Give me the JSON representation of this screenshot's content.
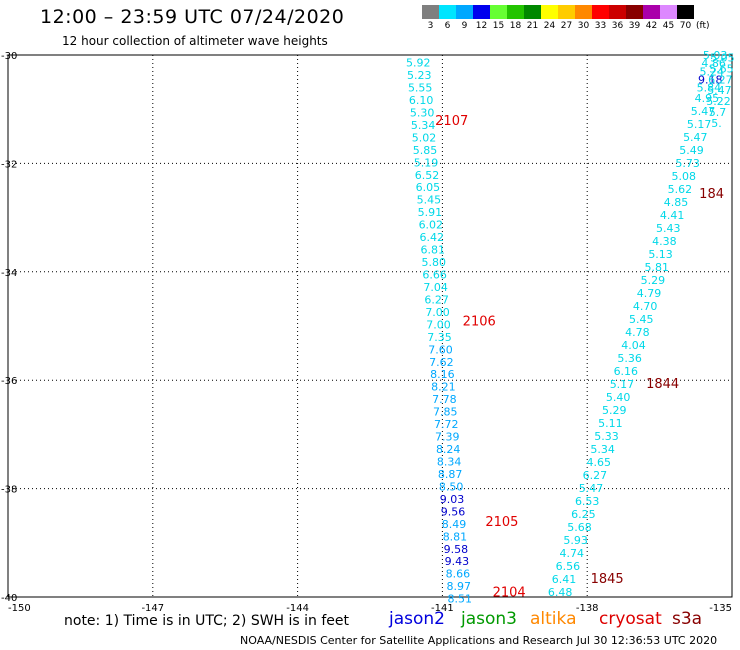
{
  "header": {
    "title": "12:00 – 23:59 UTC 07/24/2020",
    "subtitle": "12 hour collection of altimeter wave heights"
  },
  "legend": {
    "unit": "(ft)",
    "items": [
      {
        "label": "3",
        "color": "#7f7f7f"
      },
      {
        "label": "6",
        "color": "#00e5ff"
      },
      {
        "label": "9",
        "color": "#00a8ff"
      },
      {
        "label": "12",
        "color": "#0000ee"
      },
      {
        "label": "15",
        "color": "#66ff33"
      },
      {
        "label": "18",
        "color": "#22c400"
      },
      {
        "label": "21",
        "color": "#008800"
      },
      {
        "label": "24",
        "color": "#ffff00"
      },
      {
        "label": "27",
        "color": "#ffcc00"
      },
      {
        "label": "30",
        "color": "#ff8800"
      },
      {
        "label": "33",
        "color": "#ff0000"
      },
      {
        "label": "36",
        "color": "#cc0000"
      },
      {
        "label": "39",
        "color": "#880000"
      },
      {
        "label": "42",
        "color": "#aa00aa"
      },
      {
        "label": "45",
        "color": "#dd88ff"
      },
      {
        "label": "70",
        "color": "#000000"
      }
    ]
  },
  "map": {
    "lon_range": [
      -150,
      -135
    ],
    "lat_range": [
      -40,
      -30
    ],
    "x_ticks": [
      "-150",
      "-147",
      "-144",
      "-141",
      "-138",
      "-135"
    ],
    "y_ticks": [
      "-30",
      "-32",
      "-34",
      "-36",
      "-38",
      "-40"
    ],
    "tracks": [
      {
        "pass_labels": [
          {
            "text": "2107",
            "lat": -31.2,
            "lon_off": 0.25,
            "color": "#e00000"
          },
          {
            "text": "2106",
            "lat": -34.9,
            "lon_off": 0.5,
            "color": "#e00000"
          },
          {
            "text": "2105",
            "lat": -38.6,
            "lon_off": 0.65,
            "color": "#e00000"
          },
          {
            "text": "2104",
            "lat": -39.9,
            "lon_off": 0.7,
            "color": "#e00000"
          }
        ],
        "points": [
          {
            "lon": -141.5,
            "lat": -30.14,
            "v": "5.92",
            "c": "#00d8e8"
          },
          {
            "lon": -141.48,
            "lat": -30.37,
            "v": "5.23",
            "c": "#00d8e8"
          },
          {
            "lon": -141.46,
            "lat": -30.6,
            "v": "5.55",
            "c": "#00d8e8"
          },
          {
            "lon": -141.44,
            "lat": -30.83,
            "v": "6.10",
            "c": "#00d8e8"
          },
          {
            "lon": -141.42,
            "lat": -31.06,
            "v": "5.30",
            "c": "#00d8e8"
          },
          {
            "lon": -141.4,
            "lat": -31.29,
            "v": "5.34",
            "c": "#00d8e8"
          },
          {
            "lon": -141.38,
            "lat": -31.52,
            "v": "5.02",
            "c": "#00d8e8"
          },
          {
            "lon": -141.36,
            "lat": -31.75,
            "v": "5.85",
            "c": "#00d8e8"
          },
          {
            "lon": -141.34,
            "lat": -31.98,
            "v": "5.19",
            "c": "#00d8e8"
          },
          {
            "lon": -141.32,
            "lat": -32.21,
            "v": "6.52",
            "c": "#00d8e8"
          },
          {
            "lon": -141.3,
            "lat": -32.44,
            "v": "6.05",
            "c": "#00d8e8"
          },
          {
            "lon": -141.28,
            "lat": -32.67,
            "v": "5.45",
            "c": "#00d8e8"
          },
          {
            "lon": -141.26,
            "lat": -32.9,
            "v": "5.91",
            "c": "#00d8e8"
          },
          {
            "lon": -141.24,
            "lat": -33.13,
            "v": "6.02",
            "c": "#00d8e8"
          },
          {
            "lon": -141.22,
            "lat": -33.36,
            "v": "6.42",
            "c": "#00d8e8"
          },
          {
            "lon": -141.2,
            "lat": -33.59,
            "v": "6.81",
            "c": "#00d8e8"
          },
          {
            "lon": -141.18,
            "lat": -33.82,
            "v": "5.80",
            "c": "#00d8e8"
          },
          {
            "lon": -141.16,
            "lat": -34.05,
            "v": "6.66",
            "c": "#00d8e8"
          },
          {
            "lon": -141.14,
            "lat": -34.28,
            "v": "7.04",
            "c": "#00d8e8"
          },
          {
            "lon": -141.12,
            "lat": -34.51,
            "v": "6.27",
            "c": "#00d8e8"
          },
          {
            "lon": -141.1,
            "lat": -34.74,
            "v": "7.00",
            "c": "#00d8e8"
          },
          {
            "lon": -141.08,
            "lat": -34.97,
            "v": "7.00",
            "c": "#00d8e8"
          },
          {
            "lon": -141.06,
            "lat": -35.2,
            "v": "7.35",
            "c": "#00d8e8"
          },
          {
            "lon": -141.04,
            "lat": -35.43,
            "v": "7.60",
            "c": "#00a8ff"
          },
          {
            "lon": -141.02,
            "lat": -35.66,
            "v": "7.62",
            "c": "#00a8ff"
          },
          {
            "lon": -141.0,
            "lat": -35.89,
            "v": "8.16",
            "c": "#00a8ff"
          },
          {
            "lon": -140.98,
            "lat": -36.12,
            "v": "8.21",
            "c": "#00a8ff"
          },
          {
            "lon": -140.96,
            "lat": -36.35,
            "v": "7.78",
            "c": "#00a8ff"
          },
          {
            "lon": -140.94,
            "lat": -36.58,
            "v": "7.85",
            "c": "#00a8ff"
          },
          {
            "lon": -140.92,
            "lat": -36.81,
            "v": "7.72",
            "c": "#00a8ff"
          },
          {
            "lon": -140.9,
            "lat": -37.04,
            "v": "7.39",
            "c": "#00a8ff"
          },
          {
            "lon": -140.88,
            "lat": -37.27,
            "v": "8.24",
            "c": "#00a8ff"
          },
          {
            "lon": -140.86,
            "lat": -37.5,
            "v": "8.34",
            "c": "#00a8ff"
          },
          {
            "lon": -140.84,
            "lat": -37.73,
            "v": "8.87",
            "c": "#00a8ff"
          },
          {
            "lon": -140.82,
            "lat": -37.96,
            "v": "8.50",
            "c": "#00a8ff"
          },
          {
            "lon": -140.8,
            "lat": -38.19,
            "v": "9.03",
            "c": "#0000cc"
          },
          {
            "lon": -140.78,
            "lat": -38.42,
            "v": "9.56",
            "c": "#0000cc"
          },
          {
            "lon": -140.76,
            "lat": -38.65,
            "v": "8.49",
            "c": "#00a8ff"
          },
          {
            "lon": -140.74,
            "lat": -38.88,
            "v": "8.81",
            "c": "#00a8ff"
          },
          {
            "lon": -140.72,
            "lat": -39.11,
            "v": "9.58",
            "c": "#0000cc"
          },
          {
            "lon": -140.7,
            "lat": -39.34,
            "v": "9.43",
            "c": "#0000cc"
          },
          {
            "lon": -140.68,
            "lat": -39.57,
            "v": "8.66",
            "c": "#00a8ff"
          },
          {
            "lon": -140.66,
            "lat": -39.8,
            "v": "8.97",
            "c": "#00a8ff"
          },
          {
            "lon": -140.64,
            "lat": -40.03,
            "v": "8.51",
            "c": "#00a8ff"
          }
        ]
      },
      {
        "pass_labels": [
          {
            "text": "184",
            "lat": -32.55,
            "lon_off": 0.4,
            "color": "#880000"
          },
          {
            "text": "1844",
            "lat": -36.05,
            "lon_off": 0.5,
            "color": "#880000"
          },
          {
            "text": "1845",
            "lat": -39.65,
            "lon_off": 0.55,
            "color": "#880000"
          }
        ],
        "points": [
          {
            "lon": -135.35,
            "lat": -30.0,
            "v": "5.03",
            "c": "#00d8e8"
          },
          {
            "lon": -135.38,
            "lat": -30.15,
            "v": "4.86",
            "c": "#00d8e8"
          },
          {
            "lon": -135.42,
            "lat": -30.3,
            "v": "5.24",
            "c": "#00d8e8"
          },
          {
            "lon": -135.45,
            "lat": -30.45,
            "v": "9.18",
            "c": "#0000cc"
          },
          {
            "lon": -135.48,
            "lat": -30.6,
            "v": "5.84",
            "c": "#00d8e8"
          },
          {
            "lon": -135.52,
            "lat": -30.79,
            "v": "4.95",
            "c": "#00d8e8"
          },
          {
            "lon": -135.6,
            "lat": -31.03,
            "v": "5.47",
            "c": "#00d8e8"
          },
          {
            "lon": -135.68,
            "lat": -31.27,
            "v": "5.17",
            "c": "#00d8e8"
          },
          {
            "lon": -135.76,
            "lat": -31.51,
            "v": "5.47",
            "c": "#00d8e8"
          },
          {
            "lon": -135.84,
            "lat": -31.75,
            "v": "5.49",
            "c": "#00d8e8"
          },
          {
            "lon": -135.92,
            "lat": -31.99,
            "v": "5.73",
            "c": "#00d8e8"
          },
          {
            "lon": -136.0,
            "lat": -32.23,
            "v": "5.08",
            "c": "#00d8e8"
          },
          {
            "lon": -136.08,
            "lat": -32.47,
            "v": "5.62",
            "c": "#00d8e8"
          },
          {
            "lon": -136.16,
            "lat": -32.71,
            "v": "4.85",
            "c": "#00d8e8"
          },
          {
            "lon": -136.24,
            "lat": -32.95,
            "v": "4.41",
            "c": "#00d8e8"
          },
          {
            "lon": -136.32,
            "lat": -33.19,
            "v": "5.43",
            "c": "#00d8e8"
          },
          {
            "lon": -136.4,
            "lat": -33.43,
            "v": "4.38",
            "c": "#00d8e8"
          },
          {
            "lon": -136.48,
            "lat": -33.67,
            "v": "5.13",
            "c": "#00d8e8"
          },
          {
            "lon": -136.56,
            "lat": -33.91,
            "v": "5.81",
            "c": "#00d8e8"
          },
          {
            "lon": -136.64,
            "lat": -34.15,
            "v": "5.29",
            "c": "#00d8e8"
          },
          {
            "lon": -136.72,
            "lat": -34.39,
            "v": "4.79",
            "c": "#00d8e8"
          },
          {
            "lon": -136.8,
            "lat": -34.63,
            "v": "4.70",
            "c": "#00d8e8"
          },
          {
            "lon": -136.88,
            "lat": -34.87,
            "v": "5.45",
            "c": "#00d8e8"
          },
          {
            "lon": -136.96,
            "lat": -35.11,
            "v": "4.78",
            "c": "#00d8e8"
          },
          {
            "lon": -137.04,
            "lat": -35.35,
            "v": "4.04",
            "c": "#00d8e8"
          },
          {
            "lon": -137.12,
            "lat": -35.59,
            "v": "5.36",
            "c": "#00d8e8"
          },
          {
            "lon": -137.2,
            "lat": -35.83,
            "v": "6.16",
            "c": "#00d8e8"
          },
          {
            "lon": -137.28,
            "lat": -36.07,
            "v": "5.17",
            "c": "#00d8e8"
          },
          {
            "lon": -137.36,
            "lat": -36.31,
            "v": "5.40",
            "c": "#00d8e8"
          },
          {
            "lon": -137.44,
            "lat": -36.55,
            "v": "5.29",
            "c": "#00d8e8"
          },
          {
            "lon": -137.52,
            "lat": -36.79,
            "v": "5.11",
            "c": "#00d8e8"
          },
          {
            "lon": -137.6,
            "lat": -37.03,
            "v": "5.33",
            "c": "#00d8e8"
          },
          {
            "lon": -137.68,
            "lat": -37.27,
            "v": "5.34",
            "c": "#00d8e8"
          },
          {
            "lon": -137.76,
            "lat": -37.51,
            "v": "4.65",
            "c": "#00d8e8"
          },
          {
            "lon": -137.84,
            "lat": -37.75,
            "v": "6.27",
            "c": "#00d8e8"
          },
          {
            "lon": -137.92,
            "lat": -37.99,
            "v": "5.47",
            "c": "#00d8e8"
          },
          {
            "lon": -138.0,
            "lat": -38.23,
            "v": "6.53",
            "c": "#00d8e8"
          },
          {
            "lon": -138.08,
            "lat": -38.47,
            "v": "6.25",
            "c": "#00d8e8"
          },
          {
            "lon": -138.16,
            "lat": -38.71,
            "v": "5.68",
            "c": "#00d8e8"
          },
          {
            "lon": -138.24,
            "lat": -38.95,
            "v": "5.93",
            "c": "#00d8e8"
          },
          {
            "lon": -138.32,
            "lat": -39.19,
            "v": "4.74",
            "c": "#00d8e8"
          },
          {
            "lon": -138.4,
            "lat": -39.43,
            "v": "6.56",
            "c": "#00d8e8"
          },
          {
            "lon": -138.48,
            "lat": -39.67,
            "v": "6.41",
            "c": "#00d8e8"
          },
          {
            "lon": -138.56,
            "lat": -39.91,
            "v": "6.48",
            "c": "#00d8e8"
          }
        ]
      },
      {
        "pass_labels": [],
        "points": [
          {
            "lon": -135.2,
            "lat": -30.05,
            "v": "5.05",
            "c": "#00d8e8"
          },
          {
            "lon": -135.22,
            "lat": -30.25,
            "v": "5.65",
            "c": "#00d8e8"
          },
          {
            "lon": -135.24,
            "lat": -30.45,
            "v": "6.27",
            "c": "#00d8e8"
          },
          {
            "lon": -135.26,
            "lat": -30.65,
            "v": "5.47",
            "c": "#00d8e8"
          },
          {
            "lon": -135.28,
            "lat": -30.85,
            "v": "5.22",
            "c": "#00d8e8"
          },
          {
            "lon": -135.3,
            "lat": -31.05,
            "v": "5.7",
            "c": "#00d8e8"
          },
          {
            "lon": -135.32,
            "lat": -31.25,
            "v": "5.",
            "c": "#00d8e8"
          }
        ]
      }
    ]
  },
  "note": "note: 1) Time is in UTC; 2) SWH is in feet",
  "satellites": [
    {
      "name": "jason2",
      "color": "#0000dd"
    },
    {
      "name": "jason3",
      "color": "#009900"
    },
    {
      "name": "altika",
      "color": "#ff8800"
    },
    {
      "name": "cryosat",
      "color": "#dd0000"
    },
    {
      "name": "s3a",
      "color": "#880000"
    }
  ],
  "credit": "NOAA/NESDIS Center for Satellite Applications and Research    Jul 30 12:36:53 UTC 2020"
}
